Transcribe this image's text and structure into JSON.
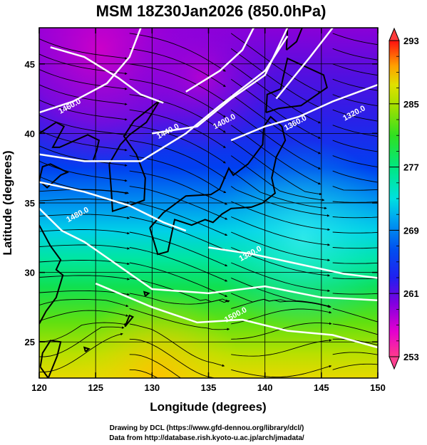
{
  "title": "MSM 18Z30Jan2026 (850.0hPa)",
  "x_axis": {
    "label": "Longitude (degrees)",
    "range": [
      120,
      150
    ],
    "ticks": [
      "120",
      "125",
      "130",
      "135",
      "140",
      "145",
      "150"
    ]
  },
  "y_axis": {
    "label": "Latitude  (degrees)",
    "range": [
      22.4,
      47.6
    ],
    "ticks": [
      "25",
      "30",
      "35",
      "40",
      "45"
    ]
  },
  "colorbar": {
    "range": [
      253,
      293
    ],
    "ticks": [
      "293",
      "285",
      "277",
      "269",
      "261",
      "253"
    ],
    "colors": [
      "#ff3a8c",
      "#e400d0",
      "#8000e0",
      "#4010e8",
      "#0030f0",
      "#0090f0",
      "#00e0e0",
      "#00e890",
      "#20e030",
      "#80e000",
      "#d8e000",
      "#ffb000",
      "#ff5000",
      "#ff1010"
    ]
  },
  "contour_labels": [
    {
      "text": "1460.0",
      "lon": 122.8,
      "lat": 41.8
    },
    {
      "text": "1440.0",
      "lon": 131.5,
      "lat": 40.0
    },
    {
      "text": "1400.0",
      "lon": 136.5,
      "lat": 40.7
    },
    {
      "text": "1360.0",
      "lon": 142.8,
      "lat": 40.6
    },
    {
      "text": "1320.0",
      "lon": 148.0,
      "lat": 41.3
    },
    {
      "text": "1480.0",
      "lon": 123.5,
      "lat": 34.0
    },
    {
      "text": "1380.0",
      "lon": 138.8,
      "lat": 31.2
    },
    {
      "text": "1500.0",
      "lon": 137.5,
      "lat": 26.8
    }
  ],
  "credits": {
    "line1": "Drawing by DCL (https://www.gfd-dennou.org/library/dcl/)",
    "line2": "Data from http://database.rish.kyoto-u.ac.jp/arch/jmadata/"
  }
}
